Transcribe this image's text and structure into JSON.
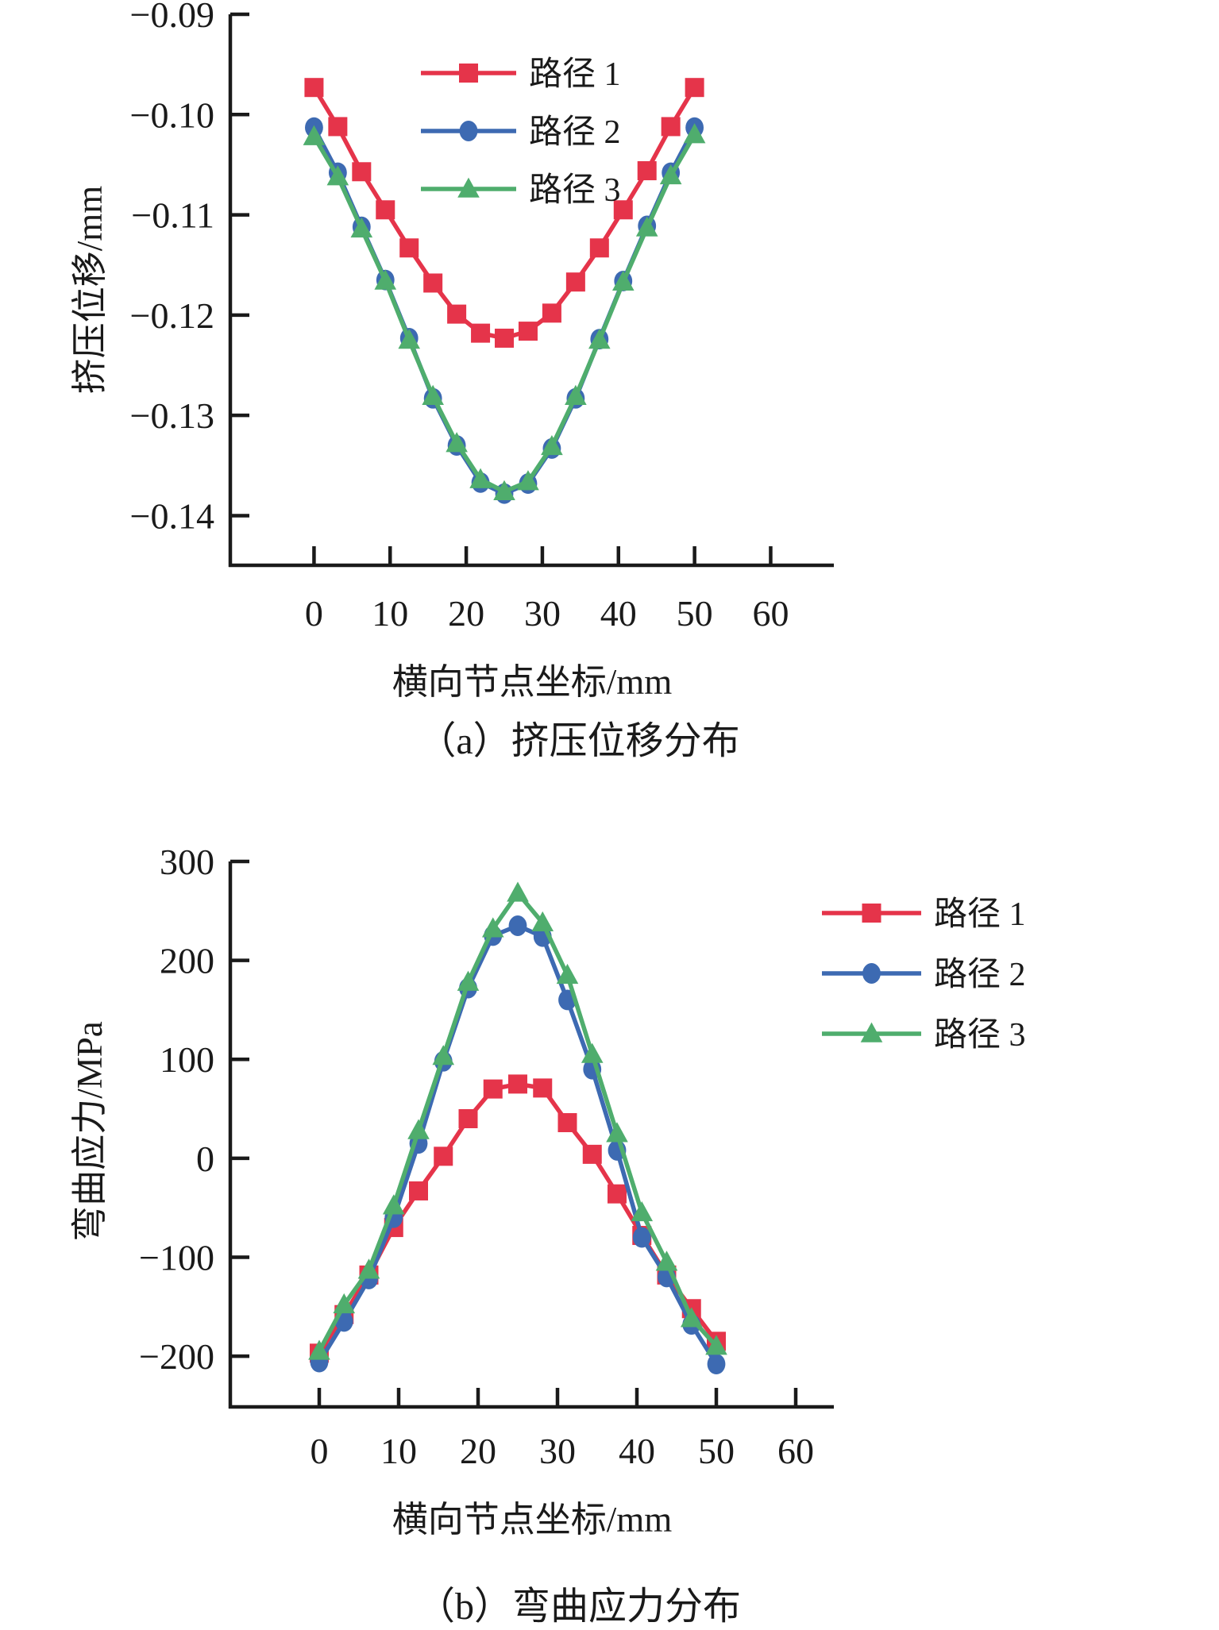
{
  "figure": {
    "background": "#ffffff",
    "axis_color": "#1a1a1a",
    "text_color": "#1a1a1a"
  },
  "chart_data": [
    {
      "type": "line",
      "panel": "a",
      "caption": "（a）挤压位移分布",
      "xlabel": "横向节点坐标/mm",
      "ylabel": "挤压位移/mm",
      "xlim": [
        -11,
        68.3
      ],
      "ylim": [
        -0.14495,
        -0.09
      ],
      "grid": false,
      "legend_position": "top-center-inside",
      "xticks": [
        {
          "v": 0,
          "label": "0"
        },
        {
          "v": 10,
          "label": "10"
        },
        {
          "v": 20,
          "label": "20"
        },
        {
          "v": 30,
          "label": "30"
        },
        {
          "v": 40,
          "label": "40"
        },
        {
          "v": 50,
          "label": "50"
        },
        {
          "v": 60,
          "label": "60"
        }
      ],
      "yticks": [
        {
          "v": -0.09,
          "label": "−0.09"
        },
        {
          "v": -0.1,
          "label": "−0.10"
        },
        {
          "v": -0.11,
          "label": "−0.11"
        },
        {
          "v": -0.12,
          "label": "−0.12"
        },
        {
          "v": -0.13,
          "label": "−0.13"
        },
        {
          "v": -0.14,
          "label": "−0.14"
        }
      ],
      "x": [
        0,
        3.125,
        6.25,
        9.375,
        12.5,
        15.625,
        18.75,
        21.875,
        25,
        28.125,
        31.25,
        34.375,
        37.5,
        40.625,
        43.75,
        46.875,
        50
      ],
      "series": [
        {
          "name": "路径 1",
          "color": "#e5344a",
          "marker": "square",
          "values": [
            -0.0973,
            -0.1012,
            -0.1057,
            -0.1095,
            -0.1133,
            -0.1168,
            -0.1199,
            -0.1218,
            -0.1223,
            -0.1216,
            -0.1198,
            -0.1167,
            -0.1133,
            -0.1095,
            -0.1056,
            -0.1012,
            -0.0973
          ]
        },
        {
          "name": "路径 2",
          "color": "#3d6ab2",
          "marker": "circle",
          "values": [
            -0.1013,
            -0.1058,
            -0.1112,
            -0.1165,
            -0.1223,
            -0.1283,
            -0.133,
            -0.1367,
            -0.1378,
            -0.1368,
            -0.1333,
            -0.1283,
            -0.1224,
            -0.1166,
            -0.1111,
            -0.1058,
            -0.1013
          ]
        },
        {
          "name": "路径 3",
          "color": "#4fad6d",
          "marker": "triangle",
          "values": [
            -0.1022,
            -0.1062,
            -0.1114,
            -0.1166,
            -0.1225,
            -0.1281,
            -0.1328,
            -0.1364,
            -0.1376,
            -0.1366,
            -0.1331,
            -0.1281,
            -0.1225,
            -0.1167,
            -0.1113,
            -0.1061,
            -0.102
          ]
        }
      ]
    },
    {
      "type": "line",
      "panel": "b",
      "caption": "（b）弯曲应力分布",
      "xlabel": "横向节点坐标/mm",
      "ylabel": "弯曲应力/MPa",
      "xlim": [
        -11.2,
        64.8
      ],
      "ylim": [
        -251.3,
        300
      ],
      "grid": false,
      "legend_position": "right-inside",
      "xticks": [
        {
          "v": 0,
          "label": "0"
        },
        {
          "v": 10,
          "label": "10"
        },
        {
          "v": 20,
          "label": "20"
        },
        {
          "v": 30,
          "label": "30"
        },
        {
          "v": 40,
          "label": "40"
        },
        {
          "v": 50,
          "label": "50"
        },
        {
          "v": 60,
          "label": "60"
        }
      ],
      "yticks": [
        {
          "v": 300,
          "label": "300"
        },
        {
          "v": 200,
          "label": "200"
        },
        {
          "v": 100,
          "label": "100"
        },
        {
          "v": 0,
          "label": "0"
        },
        {
          "v": -100,
          "label": "−100"
        },
        {
          "v": -200,
          "label": "−200"
        }
      ],
      "x": [
        0,
        3.125,
        6.25,
        9.375,
        12.5,
        15.625,
        18.75,
        21.875,
        25,
        28.125,
        31.25,
        34.375,
        37.5,
        40.625,
        43.75,
        46.875,
        50
      ],
      "series": [
        {
          "name": "路径 1",
          "color": "#e5344a",
          "marker": "square",
          "values": [
            -197,
            -158,
            -118,
            -70,
            -33,
            2,
            40,
            70,
            75,
            71,
            36,
            4,
            -36,
            -78,
            -118,
            -152,
            -185
          ]
        },
        {
          "name": "路径 2",
          "color": "#3d6ab2",
          "marker": "circle",
          "values": [
            -206,
            -165,
            -122,
            -60,
            15,
            98,
            172,
            225,
            235,
            224,
            160,
            90,
            8,
            -80,
            -120,
            -168,
            -208
          ]
        },
        {
          "name": "路径 3",
          "color": "#4fad6d",
          "marker": "triangle",
          "values": [
            -195,
            -148,
            -113,
            -48,
            28,
            103,
            178,
            232,
            268,
            238,
            185,
            105,
            25,
            -55,
            -105,
            -162,
            -190
          ]
        }
      ]
    }
  ]
}
